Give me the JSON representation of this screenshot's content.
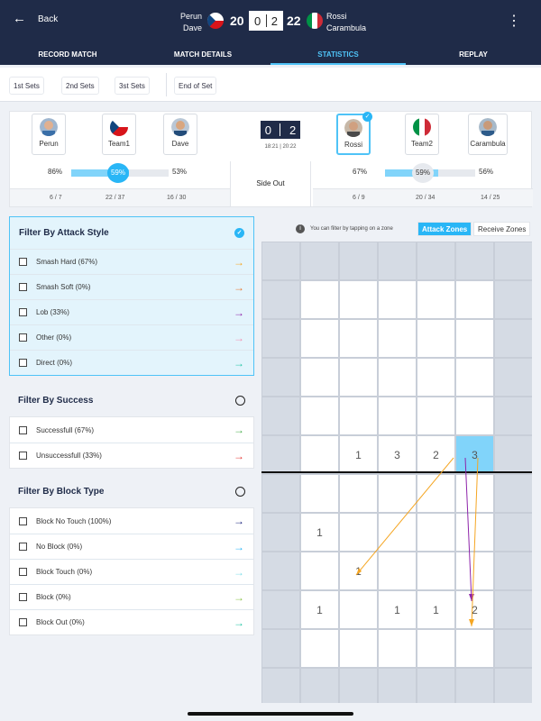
{
  "header": {
    "back_label": "Back",
    "team_left": {
      "p1": "Perun",
      "p2": "Dave",
      "flag": "czech"
    },
    "team_right": {
      "p1": "Rossi",
      "p2": "Carambula",
      "flag": "italy"
    },
    "score_left": "20",
    "score_right": "22",
    "sets_left": "0",
    "sets_right": "2",
    "menu_icon": "kebab-menu-icon"
  },
  "tabs": [
    {
      "label": "RECORD MATCH",
      "active": false
    },
    {
      "label": "MATCH DETAILS",
      "active": false
    },
    {
      "label": "STATISTICS",
      "active": true
    },
    {
      "label": "REPLAY",
      "active": false
    }
  ],
  "set_tabs": [
    "1st Sets",
    "2nd Sets",
    "3st Sets",
    "End of Set"
  ],
  "summary": {
    "left_players": [
      {
        "name": "Perun",
        "icon": "avatar"
      },
      {
        "name": "Team1",
        "icon": "czech-flag"
      },
      {
        "name": "Dave",
        "icon": "avatar"
      }
    ],
    "right_players": [
      {
        "name": "Rossi",
        "icon": "avatar",
        "selected": true
      },
      {
        "name": "Team2",
        "icon": "italy-flag"
      },
      {
        "name": "Carambula",
        "icon": "avatar"
      }
    ],
    "set_score_left": "0",
    "set_score_right": "2",
    "set_times": "18:21 | 20:22",
    "left_pcts": {
      "a": "86%",
      "mid": "59%",
      "b": "53%",
      "fill": 0.59
    },
    "right_pcts": {
      "a": "67%",
      "mid": "59%",
      "b": "56%",
      "fill": 0.59
    },
    "side_out_label": "Side Out",
    "left_counts": [
      "6 / 7",
      "22 / 37",
      "16 / 30"
    ],
    "right_counts": [
      "6 / 9",
      "20 / 34",
      "14 / 25"
    ]
  },
  "filters": {
    "attack": {
      "title": "Filter By Attack Style",
      "items": [
        {
          "label": "Smash Hard (67%)",
          "color": "#f5a623"
        },
        {
          "label": "Smash Soft (0%)",
          "color": "#e8772e"
        },
        {
          "label": "Lob (33%)",
          "color": "#8e24aa"
        },
        {
          "label": "Other (0%)",
          "color": "#f48fb1"
        },
        {
          "label": "Direct (0%)",
          "color": "#26c6a6"
        }
      ]
    },
    "success": {
      "title": "Filter By Success",
      "items": [
        {
          "label": "Successfull (67%)",
          "color": "#4caf50"
        },
        {
          "label": "Unsuccessfull (33%)",
          "color": "#e53935"
        }
      ]
    },
    "block": {
      "title": "Filter By Block Type",
      "items": [
        {
          "label": "Block No Touch (100%)",
          "color": "#1a237e"
        },
        {
          "label": "No Block (0%)",
          "color": "#29b6f6"
        },
        {
          "label": "Block Touch (0%)",
          "color": "#80deea"
        },
        {
          "label": "Block (0%)",
          "color": "#8bc34a"
        },
        {
          "label": "Block Out (0%)",
          "color": "#26c6a6"
        }
      ]
    }
  },
  "court_panel": {
    "hint": "You can filter by tapping on a zone",
    "attack_zones_label": "Attack Zones",
    "receive_zones_label": "Receive Zones"
  },
  "court_counts": {
    "top_row": [
      "1",
      "3",
      "2",
      "3"
    ],
    "b1": "1",
    "b2": "1",
    "b3": [
      "1",
      "1",
      "1",
      "2"
    ]
  }
}
